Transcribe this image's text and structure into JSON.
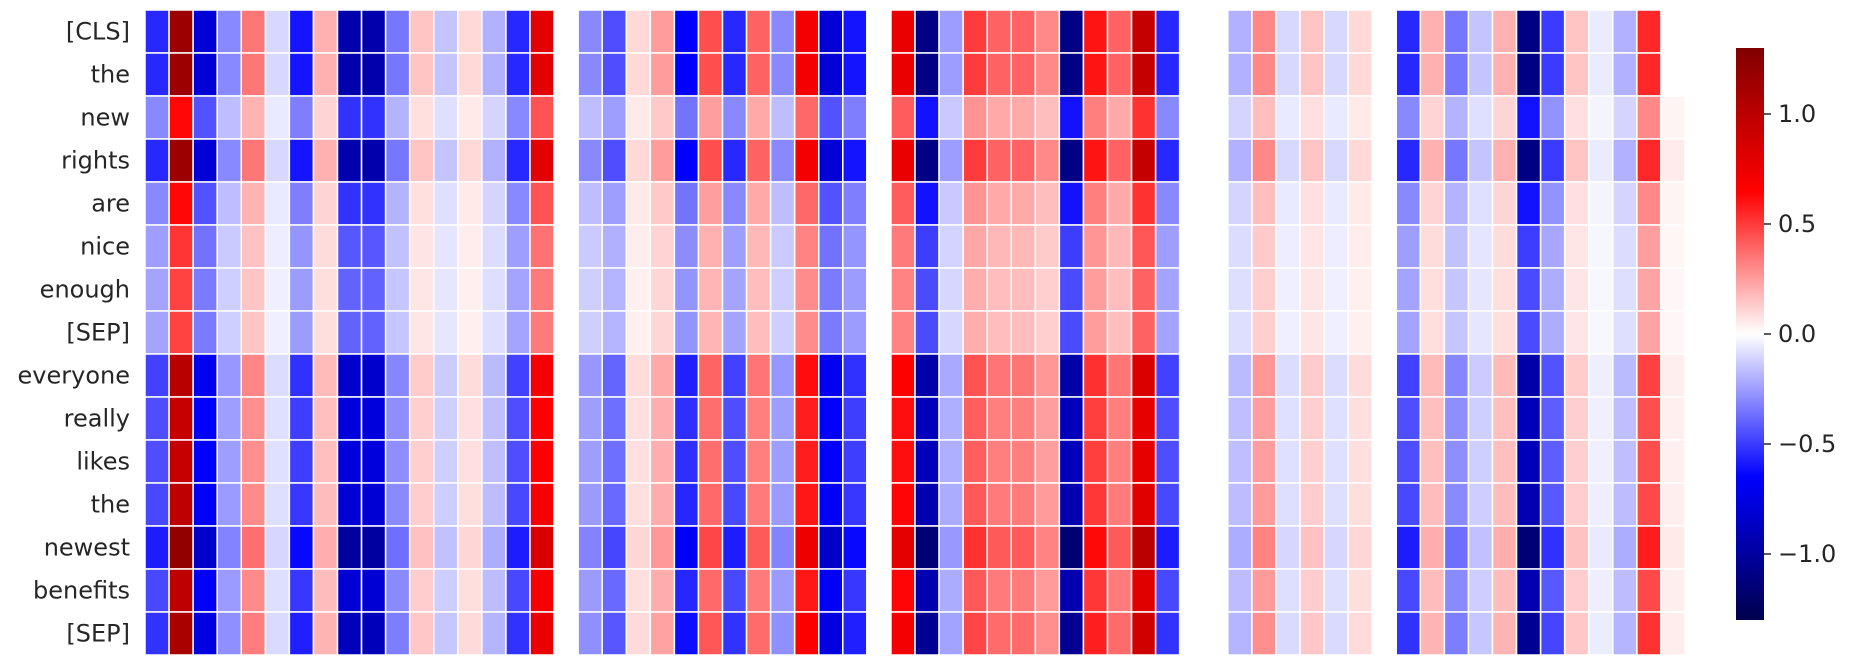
{
  "chart_data": {
    "type": "heatmap",
    "rows": [
      "[CLS]",
      "the",
      "new",
      "rights",
      "are",
      "nice",
      "enough",
      "[SEP]",
      "everyone",
      "really",
      "likes",
      "the",
      "newest",
      "benefits",
      "[SEP]"
    ],
    "n_columns": 64,
    "columns": [],
    "colormap": "seismic",
    "vmin": -1.3,
    "vmax": 1.3,
    "colorbar_ticks": [
      1.0,
      0.5,
      0.0,
      -0.5,
      -1.0
    ],
    "colorbar_tick_labels": [
      "1.0",
      "0.5",
      "0.0",
      "−0.5",
      "−1.0"
    ],
    "profile": [
      -0.55,
      1.15,
      -0.8,
      -0.3,
      0.35,
      -0.1,
      -0.6,
      0.2,
      -0.95,
      -0.95,
      -0.35,
      0.15,
      -0.15,
      0.1,
      -0.2,
      -0.55,
      0.8,
      0.0,
      -0.3,
      -0.45,
      0.1,
      0.25,
      -0.65,
      0.45,
      -0.55,
      0.4,
      -0.3,
      0.7,
      -0.8,
      -0.6,
      0.0,
      0.75,
      -1.1,
      -0.25,
      0.5,
      0.4,
      0.4,
      0.3,
      -1.1,
      0.6,
      0.4,
      0.95,
      -0.55,
      0.0,
      0.0,
      -0.2,
      0.3,
      -0.1,
      0.15,
      -0.1,
      0.1,
      0.0,
      -0.55,
      0.2,
      -0.35,
      -0.15,
      0.2,
      -1.1,
      -0.5,
      0.15,
      -0.05,
      -0.2,
      0.55,
      0.05
    ],
    "row_scale": [
      1.0,
      1.0,
      0.55,
      1.0,
      0.55,
      0.45,
      0.42,
      0.42,
      0.88,
      0.82,
      0.82,
      0.85,
      1.05,
      0.85,
      0.95
    ],
    "zero_columns": [
      30
    ],
    "missing_cells": [
      [
        0,
        63
      ],
      [
        1,
        63
      ]
    ]
  }
}
